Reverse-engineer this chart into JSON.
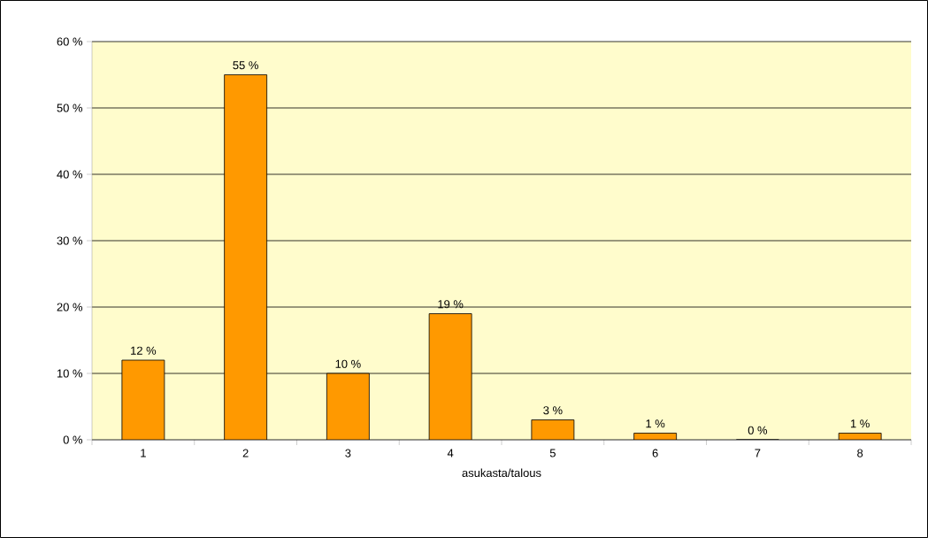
{
  "chart_data": {
    "type": "bar",
    "xlabel": "asukasta/talous",
    "categories": [
      "1",
      "2",
      "3",
      "4",
      "5",
      "6",
      "7",
      "8"
    ],
    "values": [
      12,
      55,
      10,
      19,
      3,
      1,
      0,
      1
    ],
    "value_labels": [
      "12 %",
      "55 %",
      "10 %",
      "19 %",
      "3 %",
      "1 %",
      "0 %",
      "1 %"
    ],
    "color": "#ff9900",
    "ylim": [
      0,
      60
    ],
    "yticks": [
      {
        "value": 0,
        "label": "0 %"
      },
      {
        "value": 10,
        "label": "10 %"
      },
      {
        "value": 20,
        "label": "20 %"
      },
      {
        "value": 30,
        "label": "30 %"
      },
      {
        "value": 40,
        "label": "40 %"
      },
      {
        "value": 50,
        "label": "50 %"
      },
      {
        "value": 60,
        "label": "60 %"
      }
    ],
    "grid": "y"
  }
}
